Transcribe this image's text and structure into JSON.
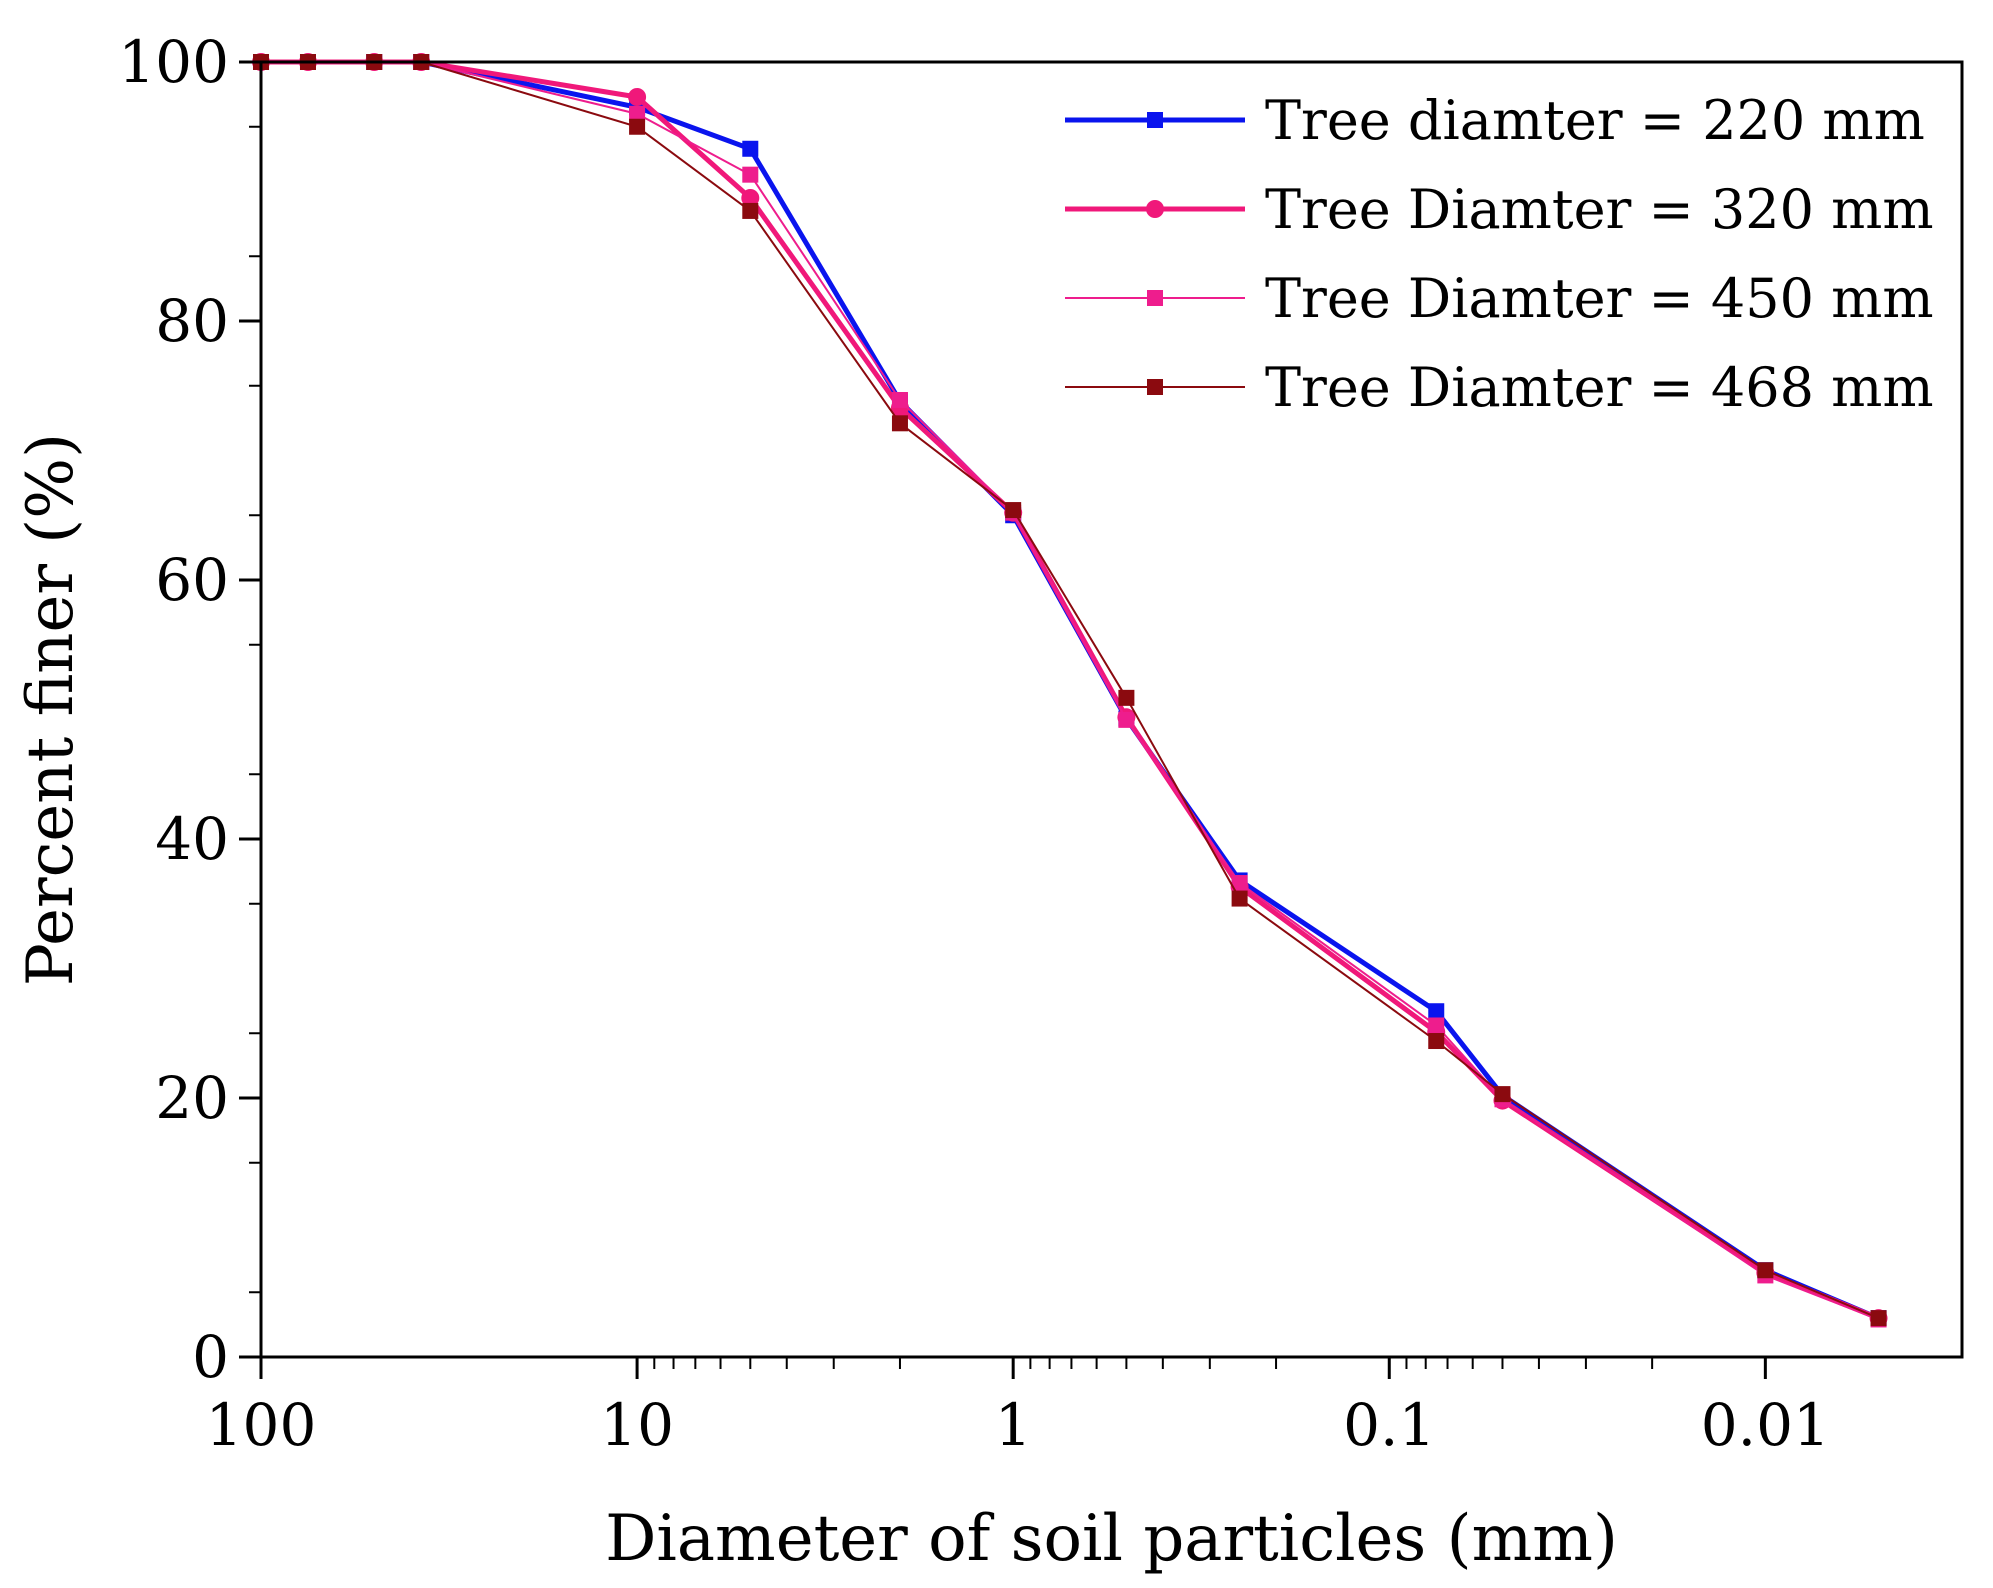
{
  "chart_data": {
    "type": "line",
    "title": "",
    "xlabel": "Diameter of soil particles (mm)",
    "ylabel": "Percent finer (%)",
    "xscale": "log",
    "x_reversed": true,
    "xlim": [
      100,
      0.003
    ],
    "ylim": [
      0,
      100
    ],
    "x_ticks": [
      100,
      10,
      1,
      0.1,
      0.01
    ],
    "x_tick_labels": [
      "100",
      "10",
      "1",
      "0.1",
      "0.01"
    ],
    "y_ticks": [
      0,
      20,
      40,
      60,
      80,
      100
    ],
    "y_tick_labels": [
      "0",
      "20",
      "40",
      "60",
      "80",
      "100"
    ],
    "legend_position": "top-right",
    "series": [
      {
        "name": "Tree diamter = 220 mm",
        "color": "#0a14ee",
        "marker": "square",
        "weight": "thick",
        "x": [
          100,
          75,
          50,
          37.5,
          10,
          5,
          2,
          1,
          0.5,
          0.25,
          0.075,
          0.05,
          0.01,
          0.005
        ],
        "y": [
          100,
          100,
          100,
          100,
          96.5,
          93.3,
          73.8,
          65,
          49.3,
          36.8,
          26.7,
          20.2,
          6.7,
          3
        ]
      },
      {
        "name": "Tree Diamter = 320 mm",
        "color": "#f0187a",
        "marker": "circle",
        "weight": "thick",
        "x": [
          100,
          75,
          50,
          37.5,
          10,
          5,
          2,
          1,
          0.5,
          0.25,
          0.075,
          0.05,
          0.01,
          0.005
        ],
        "y": [
          100,
          100,
          100,
          100,
          97.3,
          89.5,
          73.3,
          65.2,
          49.4,
          36.3,
          25.1,
          19.8,
          6.5,
          3
        ]
      },
      {
        "name": "Tree Diamter = 450 mm",
        "color": "#ee1d8d",
        "marker": "square",
        "weight": "thin",
        "x": [
          100,
          75,
          50,
          37.5,
          10,
          5,
          2,
          1,
          0.5,
          0.25,
          0.075,
          0.05,
          0.01,
          0.005
        ],
        "y": [
          100,
          100,
          100,
          100,
          96,
          91.3,
          73.9,
          65.2,
          49.2,
          36.6,
          25.6,
          19.9,
          6.3,
          2.9
        ]
      },
      {
        "name": "Tree Diamter = 468 mm",
        "color": "#8b0a0f",
        "marker": "square",
        "weight": "thin",
        "x": [
          100,
          75,
          50,
          37.5,
          10,
          5,
          2,
          1,
          0.5,
          0.25,
          0.075,
          0.05,
          0.01,
          0.005
        ],
        "y": [
          100,
          100,
          100,
          100,
          95,
          88.5,
          72.1,
          65.4,
          50.9,
          35.4,
          24.4,
          20.3,
          6.7,
          3
        ]
      }
    ]
  }
}
